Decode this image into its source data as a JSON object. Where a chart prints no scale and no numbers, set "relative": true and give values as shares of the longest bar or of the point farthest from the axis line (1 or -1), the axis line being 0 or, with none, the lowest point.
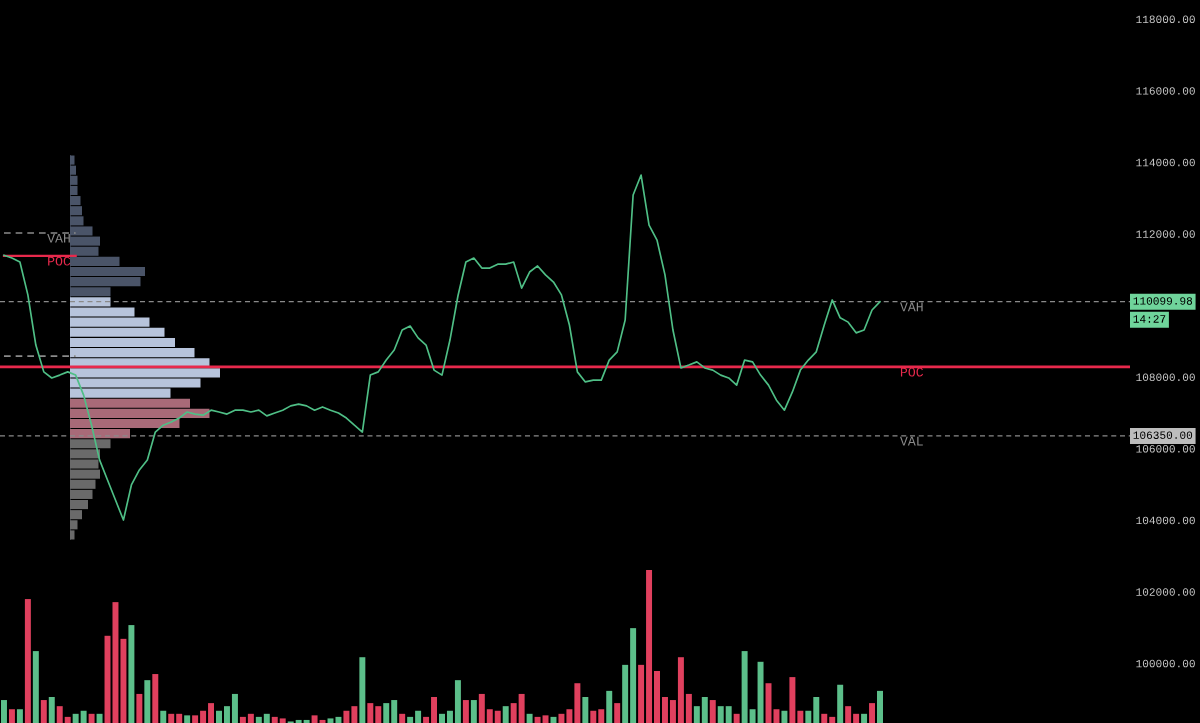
{
  "chart_data": [
    {
      "type": "line",
      "categories": [
        null,
        null,
        null,
        null,
        null,
        null,
        null,
        null,
        null,
        null,
        null,
        null,
        null,
        null,
        null,
        null,
        null,
        null,
        null,
        null,
        null,
        null,
        null,
        null,
        null,
        null,
        null,
        null,
        null,
        null,
        null,
        null,
        null,
        null,
        null,
        null,
        null,
        null,
        null,
        null,
        null,
        null,
        null,
        null,
        null,
        null,
        null,
        null,
        null,
        null,
        null,
        null,
        null,
        null,
        null,
        null,
        null,
        null,
        null,
        null,
        null,
        null,
        null,
        null,
        null,
        null,
        null,
        null,
        null,
        null,
        null,
        null,
        null,
        null,
        null,
        null,
        null,
        null,
        null,
        null,
        null,
        null,
        null,
        null,
        null,
        null,
        null,
        null,
        null,
        null,
        null,
        null,
        null,
        null,
        null,
        null,
        null,
        null,
        null,
        null,
        null,
        null,
        null,
        null,
        null,
        null,
        null,
        null,
        null,
        null,
        null
      ],
      "series": [
        {
          "color": "#4fbf86",
          "values": [
            111400,
            111320,
            111210,
            110290,
            108890,
            108140,
            107970,
            108050,
            108140,
            108050,
            107490,
            106650,
            105680,
            105120,
            104560,
            104000,
            104980,
            105400,
            105680,
            106460,
            106650,
            106740,
            106850,
            107020,
            106960,
            106930,
            107070,
            107020,
            106960,
            107070,
            107070,
            107020,
            107070,
            106910,
            106990,
            107070,
            107190,
            107240,
            107190,
            107070,
            107160,
            107070,
            106990,
            106850,
            106650,
            106460,
            108050,
            108140,
            108470,
            108750,
            109310,
            109420,
            109090,
            108890,
            108190,
            108050,
            109030,
            110260,
            111210,
            111320,
            111040,
            111040,
            111150,
            111150,
            111210,
            110480,
            110930,
            111100,
            110850,
            110650,
            110290,
            109450,
            108140,
            107860,
            107910,
            107910,
            108470,
            108700,
            109590,
            113080,
            113640,
            112240,
            111820,
            110850,
            109310,
            108250,
            108330,
            108420,
            108250,
            108190,
            108050,
            107970,
            107770,
            108470,
            108420,
            108050,
            107770,
            107350,
            107070,
            107580,
            108190,
            108470,
            108700,
            109450,
            110150,
            109650,
            109530,
            109230,
            109310,
            109870,
            110100
          ]
        },
        {
          "name": "VAH",
          "color": "#8a8a8a",
          "line_style": "dashed",
          "values": [
            112020,
            112020,
            112020,
            112020,
            112020,
            112020,
            112020,
            112020,
            112020,
            112020,
            null,
            null,
            null,
            null,
            null,
            null,
            null,
            null,
            null,
            null,
            null,
            null,
            null,
            null,
            null,
            null,
            null,
            null,
            null,
            null,
            null,
            null,
            null,
            null,
            null,
            null,
            null,
            null,
            null,
            null,
            null,
            null,
            null,
            null,
            null,
            null,
            null,
            null,
            null,
            null,
            null,
            null,
            null,
            null,
            null,
            null,
            null,
            null,
            null,
            null,
            null,
            null,
            null,
            null,
            null,
            null,
            null,
            null,
            null,
            null,
            null,
            null,
            null,
            null,
            null,
            null,
            null,
            null,
            null,
            null,
            null,
            null,
            null,
            null,
            null,
            null,
            null,
            null,
            null,
            null,
            null,
            null,
            null,
            null,
            null,
            null,
            null,
            null,
            null,
            null,
            null,
            null,
            null,
            null,
            null,
            null,
            null,
            null,
            null,
            null,
            null
          ]
        },
        {
          "name": "POC",
          "color": "#e8294c",
          "line_style": "solid",
          "values": [
            111380,
            111380,
            111380,
            111380,
            111380,
            111380,
            111380,
            111380,
            111380,
            111380,
            null,
            null,
            null,
            null,
            null,
            null,
            null,
            null,
            null,
            null,
            null,
            null,
            null,
            null,
            null,
            null,
            null,
            null,
            null,
            null,
            null,
            null,
            null,
            null,
            null,
            null,
            null,
            null,
            null,
            null,
            null,
            null,
            null,
            null,
            null,
            null,
            null,
            null,
            null,
            null,
            null,
            null,
            null,
            null,
            null,
            null,
            null,
            null,
            null,
            null,
            null,
            null,
            null,
            null,
            null,
            null,
            null,
            null,
            null,
            null,
            null,
            null,
            null,
            null,
            null,
            null,
            null,
            null,
            null,
            null,
            null,
            null,
            null,
            null,
            null,
            null,
            null,
            null,
            null,
            null,
            null,
            null,
            null,
            null,
            null,
            null,
            null,
            null,
            null,
            null,
            null,
            null,
            null,
            null,
            null,
            null,
            null,
            null,
            null,
            null,
            null
          ]
        },
        {
          "color": "#8a8a8a",
          "line_style": "dashed",
          "values": [
            108580,
            108580,
            108580,
            108580,
            108580,
            108580,
            108580,
            108580,
            108580,
            108580,
            null,
            null,
            null,
            null,
            null,
            null,
            null,
            null,
            null,
            null,
            null,
            null,
            null,
            null,
            null,
            null,
            null,
            null,
            null,
            null,
            null,
            null,
            null,
            null,
            null,
            null,
            null,
            null,
            null,
            null,
            null,
            null,
            null,
            null,
            null,
            null,
            null,
            null,
            null,
            null,
            null,
            null,
            null,
            null,
            null,
            null,
            null,
            null,
            null,
            null,
            null,
            null,
            null,
            null,
            null,
            null,
            null,
            null,
            null,
            null,
            null,
            null,
            null,
            null,
            null,
            null,
            null,
            null,
            null,
            null,
            null,
            null,
            null,
            null,
            null,
            null,
            null,
            null,
            null,
            null,
            null,
            null,
            null,
            null,
            null,
            null,
            null,
            null,
            null,
            null,
            null,
            null,
            null,
            null,
            null,
            null,
            null,
            null,
            null,
            null,
            null
          ]
        }
      ],
      "ylim": [
        98330,
        118530
      ],
      "yticks": [
        {
          "value": 100000,
          "label": "100000.00"
        },
        {
          "value": 102000,
          "label": "102000.00"
        },
        {
          "value": 104000,
          "label": "104000.00"
        },
        {
          "value": 106000,
          "label": "106000.00"
        },
        {
          "value": 108000,
          "label": "108000.00"
        },
        {
          "value": 112000,
          "label": "112000.00"
        },
        {
          "value": 114000,
          "label": "114000.00"
        },
        {
          "value": 116000,
          "label": "116000.00"
        },
        {
          "value": 118000,
          "label": "118000.00"
        }
      ],
      "ref_lines": [
        {
          "axis": "y",
          "value": 110100,
          "label": "VAH",
          "color": "#8a8a8a",
          "line_style": "dashed"
        },
        {
          "axis": "y",
          "value": 108280,
          "label": "POC",
          "color": "#e8294c",
          "line_style": "solid"
        },
        {
          "axis": "y",
          "value": 106350,
          "label": "VAL",
          "color": "#8a8a8a",
          "line_style": "dashed"
        }
      ],
      "annotations": [
        "110099.98",
        "14:27",
        "106350.00"
      ],
      "grid": false,
      "tick_labels": "y"
    },
    {
      "type": "bar",
      "relative": true,
      "tick_labels": false,
      "categories": [
        null,
        null,
        null,
        null,
        null,
        null,
        null,
        null,
        null,
        null,
        null,
        null,
        null,
        null,
        null,
        null,
        null,
        null,
        null,
        null,
        null,
        null,
        null,
        null,
        null,
        null,
        null,
        null,
        null,
        null,
        null,
        null,
        null,
        null,
        null,
        null,
        null,
        null,
        null,
        null,
        null,
        null,
        null,
        null,
        null,
        null,
        null,
        null,
        null,
        null,
        null,
        null,
        null,
        null,
        null,
        null,
        null,
        null,
        null,
        null,
        null,
        null,
        null,
        null,
        null,
        null,
        null,
        null,
        null,
        null,
        null,
        null,
        null,
        null,
        null,
        null,
        null,
        null,
        null,
        null,
        null,
        null,
        null,
        null,
        null,
        null,
        null,
        null,
        null,
        null,
        null,
        null,
        null,
        null,
        null,
        null,
        null,
        null,
        null,
        null,
        null,
        null,
        null,
        null,
        null,
        null,
        null,
        null,
        null,
        null,
        null
      ],
      "values": [
        0.15,
        0.09,
        0.09,
        0.81,
        0.47,
        0.15,
        0.17,
        0.11,
        0.04,
        0.06,
        0.08,
        0.06,
        0.06,
        0.57,
        0.79,
        0.55,
        0.64,
        0.19,
        0.28,
        0.32,
        0.08,
        0.06,
        0.06,
        0.05,
        0.05,
        0.08,
        0.13,
        0.08,
        0.11,
        0.19,
        0.04,
        0.06,
        0.04,
        0.06,
        0.04,
        0.03,
        0.01,
        0.02,
        0.02,
        0.05,
        0.02,
        0.03,
        0.04,
        0.08,
        0.11,
        0.43,
        0.13,
        0.11,
        0.13,
        0.15,
        0.06,
        0.04,
        0.08,
        0.04,
        0.17,
        0.06,
        0.08,
        0.28,
        0.15,
        0.15,
        0.19,
        0.09,
        0.08,
        0.11,
        0.13,
        0.19,
        0.06,
        0.04,
        0.05,
        0.04,
        0.06,
        0.09,
        0.26,
        0.17,
        0.08,
        0.09,
        0.21,
        0.13,
        0.38,
        0.62,
        0.38,
        1,
        0.34,
        0.17,
        0.15,
        0.43,
        0.19,
        0.11,
        0.17,
        0.15,
        0.11,
        0.11,
        0.06,
        0.47,
        0.09,
        0.4,
        0.26,
        0.09,
        0.08,
        0.3,
        0.08,
        0.08,
        0.17,
        0.06,
        0.04,
        0.25,
        0.11,
        0.06,
        0.06,
        0.13,
        0.21
      ],
      "colors": [
        "#5cbf8a",
        "#e0405e",
        "#5cbf8a",
        "#e0405e",
        "#5cbf8a",
        "#e0405e",
        "#5cbf8a",
        "#e0405e",
        "#e0405e",
        "#5cbf8a",
        "#5cbf8a",
        "#e0405e",
        "#5cbf8a",
        "#e0405e",
        "#e0405e",
        "#e0405e",
        "#5cbf8a",
        "#e0405e",
        "#5cbf8a",
        "#e0405e",
        "#5cbf8a",
        "#e0405e",
        "#e0405e",
        "#5cbf8a",
        "#e0405e",
        "#e0405e",
        "#e0405e",
        "#5cbf8a",
        "#5cbf8a",
        "#5cbf8a",
        "#e0405e",
        "#e0405e",
        "#5cbf8a",
        "#5cbf8a",
        "#e0405e",
        "#e0405e",
        "#5cbf8a",
        "#5cbf8a",
        "#5cbf8a",
        "#e0405e",
        "#e0405e",
        "#5cbf8a",
        "#5cbf8a",
        "#e0405e",
        "#e0405e",
        "#5cbf8a",
        "#e0405e",
        "#e0405e",
        "#5cbf8a",
        "#5cbf8a",
        "#e0405e",
        "#5cbf8a",
        "#5cbf8a",
        "#e0405e",
        "#e0405e",
        "#5cbf8a",
        "#5cbf8a",
        "#5cbf8a",
        "#e0405e",
        "#5cbf8a",
        "#e0405e",
        "#e0405e",
        "#e0405e",
        "#5cbf8a",
        "#e0405e",
        "#e0405e",
        "#5cbf8a",
        "#e0405e",
        "#e0405e",
        "#5cbf8a",
        "#e0405e",
        "#e0405e",
        "#e0405e",
        "#5cbf8a",
        "#e0405e",
        "#e0405e",
        "#5cbf8a",
        "#e0405e",
        "#5cbf8a",
        "#5cbf8a",
        "#e0405e",
        "#e0405e",
        "#e0405e",
        "#e0405e",
        "#e0405e",
        "#e0405e",
        "#e0405e",
        "#5cbf8a",
        "#5cbf8a",
        "#e0405e",
        "#5cbf8a",
        "#5cbf8a",
        "#e0405e",
        "#5cbf8a",
        "#5cbf8a",
        "#5cbf8a",
        "#e0405e",
        "#e0405e",
        "#5cbf8a",
        "#e0405e",
        "#e0405e",
        "#5cbf8a",
        "#5cbf8a",
        "#e0405e",
        "#e0405e",
        "#5cbf8a",
        "#e0405e",
        "#e0405e",
        "#5cbf8a",
        "#e0405e",
        "#5cbf8a"
      ]
    },
    {
      "type": "bar",
      "orientation": "horizontal",
      "relative": true,
      "tick_labels": false,
      "categories": [
        null,
        null,
        null,
        null,
        null,
        null,
        null,
        null,
        null,
        null,
        null,
        null,
        null,
        null,
        null,
        null,
        null,
        null,
        null,
        null,
        null,
        null,
        null,
        null,
        null,
        null,
        null,
        null,
        null,
        null,
        null,
        null,
        null,
        null,
        null,
        null,
        null,
        null
      ],
      "values": [
        0.03,
        0.04,
        0.05,
        0.05,
        0.07,
        0.08,
        0.09,
        0.15,
        0.2,
        0.19,
        0.33,
        0.5,
        0.47,
        0.27,
        0.27,
        0.43,
        0.53,
        0.63,
        0.7,
        0.83,
        0.93,
        1,
        0.87,
        0.67,
        0.8,
        0.93,
        0.73,
        0.4,
        0.27,
        0.2,
        0.19,
        0.2,
        0.17,
        0.15,
        0.12,
        0.08,
        0.05,
        0.03
      ],
      "colors": [
        "#4a5468",
        "#4a5468",
        "#4a5468",
        "#4a5468",
        "#4a5468",
        "#4a5468",
        "#4a5468",
        "#4a5468",
        "#4a5468",
        "#4a5468",
        "#4a5468",
        "#4a5468",
        "#4a5468",
        "#4a5468",
        "#b7c4dc",
        "#b7c4dc",
        "#b7c4dc",
        "#b7c4dc",
        "#b7c4dc",
        "#b7c4dc",
        "#b7c4dc",
        "#b7c4dc",
        "#b7c4dc",
        "#b7c4dc",
        "#a86a78",
        "#a86a78",
        "#a86a78",
        "#a86a78",
        "#6a6a6a",
        "#6a6a6a",
        "#6a6a6a",
        "#6a6a6a",
        "#6a6a6a",
        "#6a6a6a",
        "#6a6a6a",
        "#6a6a6a",
        "#6a6a6a",
        "#6a6a6a"
      ]
    }
  ]
}
